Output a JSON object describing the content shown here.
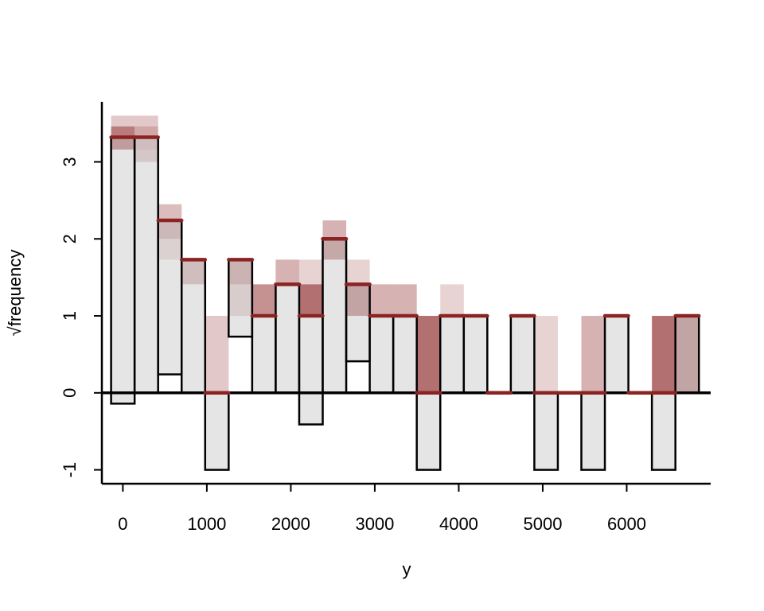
{
  "chart_data": {
    "type": "bar",
    "subtype": "hanging rootogram",
    "xlabel": "y",
    "ylabel": "√frequency",
    "xlim": [
      -250,
      7000
    ],
    "ylim": [
      -1.18,
      3.78
    ],
    "x_ticks": [
      0,
      1000,
      2000,
      3000,
      4000,
      5000,
      6000
    ],
    "y_ticks": [
      -1,
      0,
      1,
      2,
      3
    ],
    "bin_width": 280,
    "grid": false,
    "legend": "none",
    "colors": {
      "observed_fill": "#d0d0d0",
      "observed_border": "#000000",
      "expected_line": "#8b2323",
      "band": "#8b2323"
    },
    "bins": [
      {
        "x_left": -140,
        "x_right": 140,
        "expected": 3.32,
        "observed": 3.46,
        "band": [
          [
            3.16,
            3.46,
            0.6
          ],
          [
            3.46,
            3.6,
            0.25
          ],
          [
            3.16,
            3.32,
            0.3
          ]
        ]
      },
      {
        "x_left": 140,
        "x_right": 420,
        "expected": 3.32,
        "observed": 3.32,
        "band": [
          [
            3.0,
            3.16,
            0.3
          ],
          [
            3.16,
            3.46,
            0.4
          ],
          [
            3.46,
            3.6,
            0.25
          ]
        ]
      },
      {
        "x_left": 420,
        "x_right": 700,
        "expected": 2.24,
        "observed": 2.0,
        "band": [
          [
            1.73,
            2.0,
            0.2
          ],
          [
            2.0,
            2.24,
            0.45
          ],
          [
            2.24,
            2.45,
            0.3
          ]
        ]
      },
      {
        "x_left": 700,
        "x_right": 980,
        "expected": 1.73,
        "observed": 1.73,
        "band": [
          [
            1.41,
            1.73,
            0.4
          ]
        ]
      },
      {
        "x_left": 980,
        "x_right": 1260,
        "expected": 0,
        "observed": 1.0,
        "band": [
          [
            0,
            1.0,
            0.25
          ]
        ]
      },
      {
        "x_left": 1260,
        "x_right": 1540,
        "expected": 1.73,
        "observed": 1.0,
        "band": [
          [
            1.0,
            1.41,
            0.25
          ],
          [
            1.41,
            1.73,
            0.5
          ]
        ]
      },
      {
        "x_left": 1540,
        "x_right": 1820,
        "expected": 1.0,
        "observed": 1.0,
        "band": [
          [
            1.0,
            1.41,
            0.5
          ]
        ]
      },
      {
        "x_left": 1820,
        "x_right": 2100,
        "expected": 1.41,
        "observed": 1.41,
        "band": [
          [
            1.41,
            1.73,
            0.35
          ]
        ]
      },
      {
        "x_left": 2100,
        "x_right": 2380,
        "expected": 1.0,
        "observed": 1.41,
        "band": [
          [
            1.0,
            1.41,
            0.65
          ],
          [
            1.41,
            1.73,
            0.2
          ]
        ]
      },
      {
        "x_left": 2380,
        "x_right": 2660,
        "expected": 2.0,
        "observed": 2.0,
        "band": [
          [
            1.73,
            2.0,
            0.6
          ],
          [
            2.0,
            2.24,
            0.35
          ]
        ]
      },
      {
        "x_left": 2660,
        "x_right": 2940,
        "expected": 1.41,
        "observed": 1.0,
        "band": [
          [
            1.0,
            1.41,
            0.65
          ],
          [
            1.41,
            1.73,
            0.2
          ]
        ]
      },
      {
        "x_left": 2940,
        "x_right": 3220,
        "expected": 1.0,
        "observed": 1.0,
        "band": [
          [
            1.0,
            1.41,
            0.35
          ]
        ]
      },
      {
        "x_left": 3220,
        "x_right": 3500,
        "expected": 1.0,
        "observed": 1.0,
        "band": [
          [
            1.0,
            1.41,
            0.35
          ]
        ]
      },
      {
        "x_left": 3500,
        "x_right": 3780,
        "expected": 0,
        "observed": 1.0,
        "band": [
          [
            0,
            1.0,
            0.65
          ]
        ]
      },
      {
        "x_left": 3780,
        "x_right": 4060,
        "expected": 1.0,
        "observed": 1.0,
        "band": [
          [
            1.0,
            1.41,
            0.2
          ]
        ]
      },
      {
        "x_left": 4060,
        "x_right": 4340,
        "expected": 1.0,
        "observed": 1.0,
        "band": []
      },
      {
        "x_left": 4340,
        "x_right": 4620,
        "expected": 0,
        "observed": 0,
        "band": []
      },
      {
        "x_left": 4620,
        "x_right": 4900,
        "expected": 1.0,
        "observed": 1.0,
        "band": []
      },
      {
        "x_left": 4900,
        "x_right": 5180,
        "expected": 0,
        "observed": 1.0,
        "band": [
          [
            0,
            1.0,
            0.2
          ]
        ]
      },
      {
        "x_left": 5180,
        "x_right": 5460,
        "expected": 0,
        "observed": 0,
        "band": []
      },
      {
        "x_left": 5460,
        "x_right": 5740,
        "expected": 0,
        "observed": 1.0,
        "band": [
          [
            0,
            1.0,
            0.35
          ]
        ]
      },
      {
        "x_left": 5740,
        "x_right": 6020,
        "expected": 1.0,
        "observed": 1.0,
        "band": []
      },
      {
        "x_left": 6020,
        "x_right": 6300,
        "expected": 0,
        "observed": 0,
        "band": []
      },
      {
        "x_left": 6300,
        "x_right": 6580,
        "expected": 0,
        "observed": 1.0,
        "band": [
          [
            0,
            1.0,
            0.65
          ]
        ]
      },
      {
        "x_left": 6580,
        "x_right": 6860,
        "expected": 1.0,
        "observed": 1.0,
        "band": [
          [
            0,
            1.0,
            0.65
          ]
        ]
      }
    ]
  }
}
